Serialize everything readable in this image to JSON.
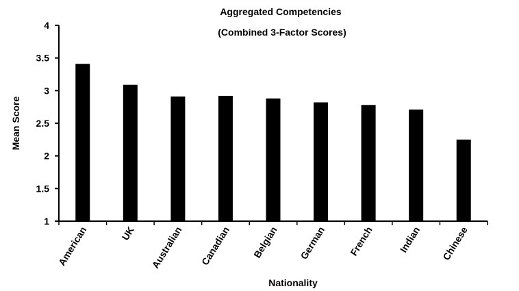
{
  "chart_data": {
    "type": "bar",
    "title": "Aggregated Competencies",
    "subtitle": "(Combined 3-Factor Scores)",
    "xlabel": "Nationality",
    "ylabel": "Mean Score",
    "categories": [
      "American",
      "UK",
      "Australian",
      "Canadian",
      "Belgian",
      "German",
      "French",
      "Indian",
      "Chinese"
    ],
    "values": [
      3.41,
      3.09,
      2.91,
      2.92,
      2.88,
      2.82,
      2.78,
      2.71,
      2.25
    ],
    "ylim": [
      1,
      4
    ],
    "yticks": [
      "1",
      "1.5",
      "2",
      "2.5",
      "3",
      "3.5",
      "4"
    ],
    "grid": false,
    "bar_color": "#000000"
  }
}
